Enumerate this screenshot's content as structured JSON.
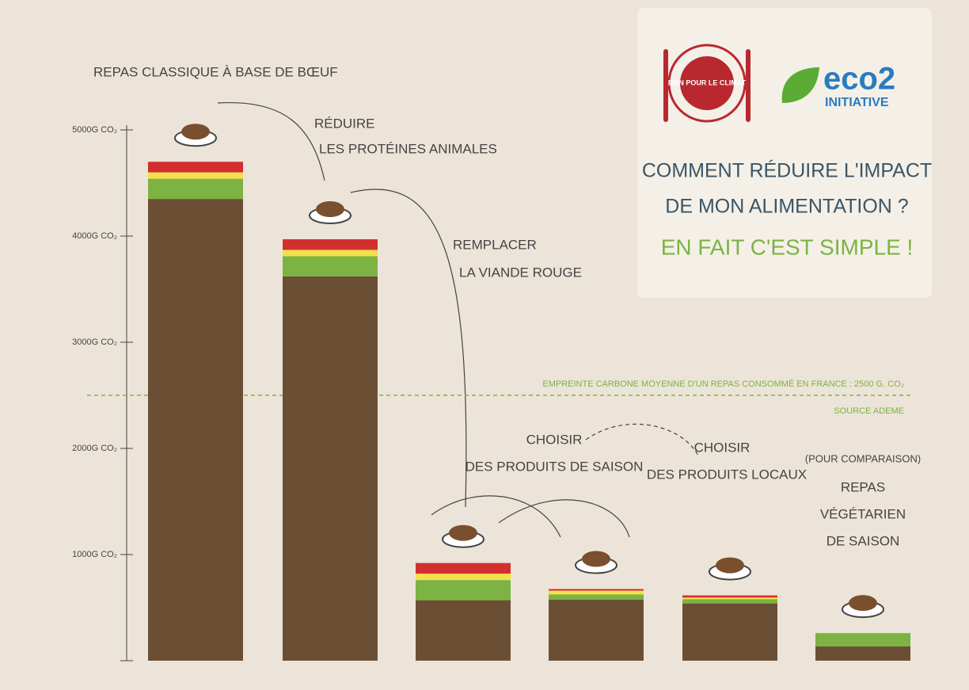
{
  "chart_data": {
    "type": "stacked_bar",
    "categories": [
      [
        "REPAS CLASSIQUE À BASE DE BŒUF"
      ],
      [
        "RÉDUIRE",
        "LES PROTÉINES ANIMALES"
      ],
      [
        "REMPLACER",
        "LA VIANDE ROUGE"
      ],
      [
        "CHOISIR",
        "DES PRODUITS DE SAISON"
      ],
      [
        "CHOISIR",
        "DES PRODUITS LOCAUX"
      ],
      [
        "(POUR COMPARAISON)",
        "REPAS",
        "VÉGÉTARIEN",
        "DE SAISON"
      ]
    ],
    "series": [
      {
        "color": "#6b4f35",
        "values": [
          4350,
          3620,
          570,
          575,
          540,
          135
        ]
      },
      {
        "color": "#7cb342",
        "values": [
          190,
          190,
          190,
          50,
          40,
          125
        ]
      },
      {
        "color": "#f3e04a",
        "values": [
          60,
          60,
          60,
          35,
          15,
          0
        ]
      },
      {
        "color": "#d32f2f",
        "values": [
          100,
          100,
          100,
          15,
          20,
          0
        ]
      }
    ],
    "ylim": [
      0,
      5000
    ],
    "yticks": [
      {
        "value": 1000,
        "label": "1000G CO₂"
      },
      {
        "value": 2000,
        "label": "2000G CO₂"
      },
      {
        "value": 3000,
        "label": "3000G CO₂"
      },
      {
        "value": 4000,
        "label": "4000G CO₂"
      },
      {
        "value": 5000,
        "label": "5000G CO₂"
      }
    ],
    "reference_line": {
      "value": 2500,
      "color": "#7cb342",
      "label": "EMPREINTE CARBONE MOYENNE D'UN REPAS CONSOMMÉ EN FRANCE : 2500 G. CO₂",
      "source": "SOURCE ADEME"
    },
    "panel": {
      "logo_left": "BON POUR LE CLIMAT",
      "logo_right": "eco2",
      "logo_right_sub": "INITIATIVE",
      "title_lines": [
        "COMMENT RÉDUIRE L'IMPACT",
        "DE MON ALIMENTATION ?"
      ],
      "subtitle": "EN FAIT C'EST SIMPLE !"
    }
  }
}
